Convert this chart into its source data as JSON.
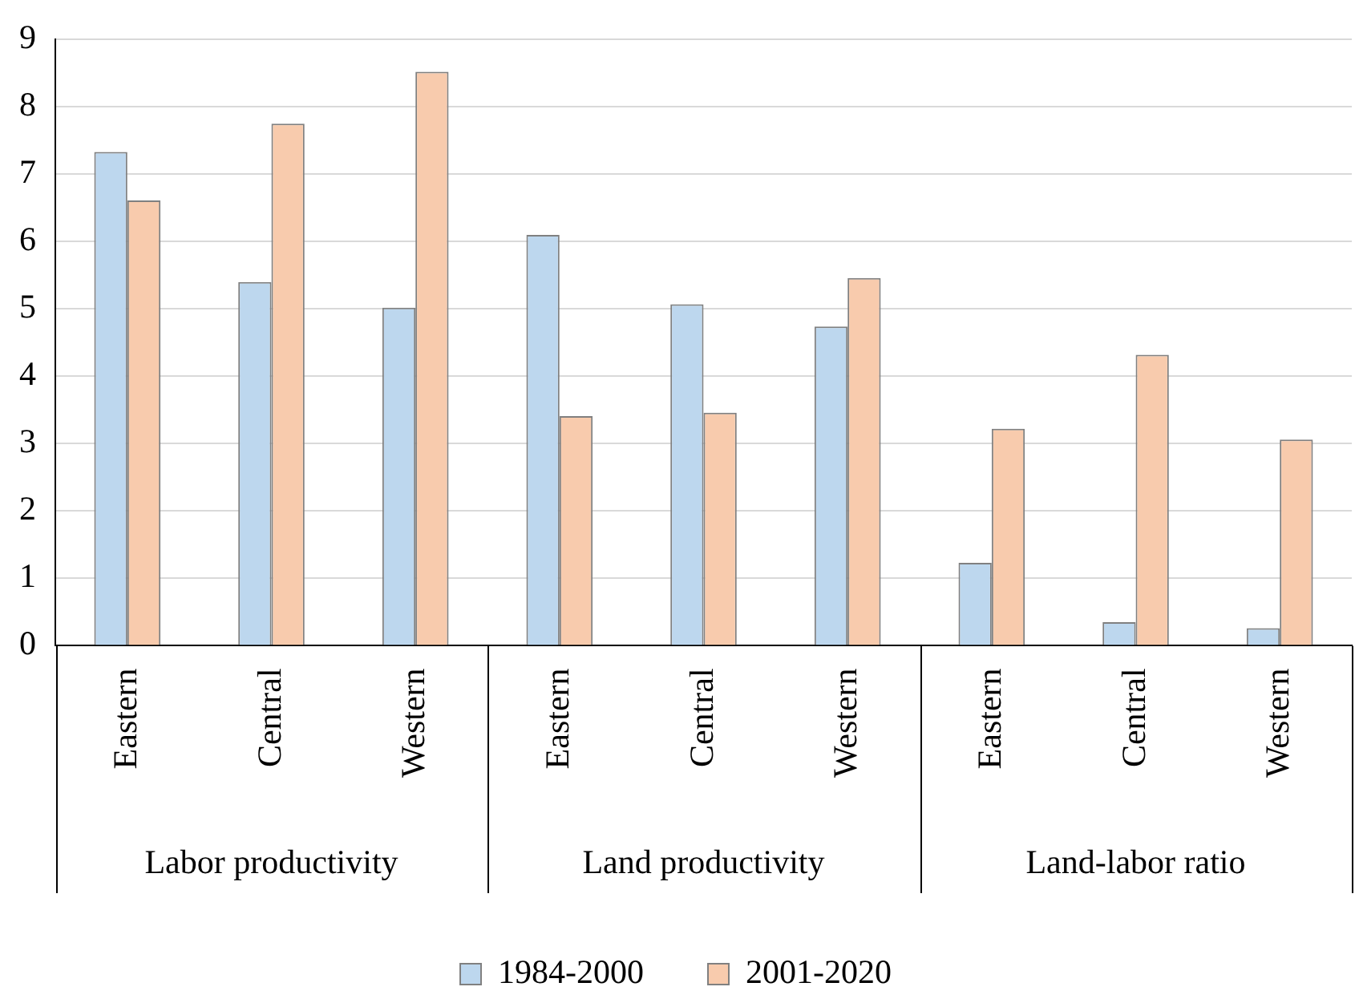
{
  "chart_data": {
    "type": "bar",
    "categories": [
      "Eastern",
      "Central",
      "Western",
      "Eastern",
      "Central",
      "Western",
      "Eastern",
      "Central",
      "Western"
    ],
    "series": [
      {
        "name": "1984-2000",
        "color": "#bdd7ee",
        "values": [
          7.33,
          5.4,
          5.02,
          6.1,
          5.07,
          4.74,
          1.23,
          0.35,
          0.26
        ]
      },
      {
        "name": "2001-2020",
        "color": "#f8cbad",
        "values": [
          6.61,
          7.75,
          8.52,
          3.41,
          3.46,
          5.46,
          3.22,
          4.32,
          3.06
        ]
      }
    ],
    "annotations": [
      "Labor productivity",
      "Land productivity",
      "Land-labor ratio"
    ],
    "ylim": [
      0,
      9
    ],
    "yticks": [
      0,
      1,
      2,
      3,
      4,
      5,
      6,
      7,
      8,
      9
    ],
    "grid": "y",
    "legend": "bottom"
  }
}
